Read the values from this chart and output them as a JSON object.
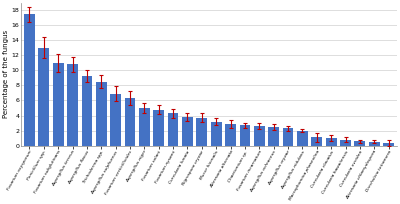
{
  "categories": [
    "Fusarium oxysporum",
    "Penicillium spp.",
    "Fusarium subglutinans",
    "Aspergillus terreus",
    "Aspergillus flavus",
    "Trichoderma spp.",
    "Aspergillus sulphureus",
    "Fusarium verticillioides",
    "Aspergillus niger",
    "Fusarium solani",
    "Fusarium nysami",
    "Curvularia lunata",
    "Nigrospora oryzae",
    "Mucor hiemalis",
    "Alternaria alternata",
    "Chaetomium sp.",
    "Fusarium incarnatum",
    "Aspergillus ochraceus",
    "Aspergillus oryzae",
    "Aspergillus nidulans",
    "Macrophomina phaseolina",
    "Curvularia clavatus",
    "Curvularia hawaiiensis",
    "Curvularia ovoidea",
    "Alternaria chlamydospora",
    "Drechslera tetramera"
  ],
  "values": [
    17.5,
    13.0,
    11.0,
    10.8,
    9.3,
    8.5,
    6.9,
    6.3,
    5.0,
    4.8,
    4.3,
    3.8,
    3.7,
    3.2,
    2.9,
    2.7,
    2.6,
    2.5,
    2.3,
    2.0,
    1.1,
    1.0,
    0.8,
    0.55,
    0.5,
    0.35
  ],
  "errors": [
    1.0,
    1.4,
    1.2,
    1.0,
    0.8,
    0.9,
    1.0,
    0.9,
    0.7,
    0.6,
    0.6,
    0.5,
    0.6,
    0.5,
    0.5,
    0.3,
    0.4,
    0.4,
    0.3,
    0.25,
    0.6,
    0.4,
    0.3,
    0.2,
    0.2,
    0.4
  ],
  "bar_color": "#4472C4",
  "error_color": "#C00000",
  "ylabel": "Percentage of the fungus",
  "ylim": [
    0,
    19
  ],
  "yticks": [
    0,
    2,
    4,
    6,
    8,
    10,
    12,
    14,
    16,
    18
  ],
  "background_color": "#ffffff",
  "grid_color": "#d0d0d0"
}
